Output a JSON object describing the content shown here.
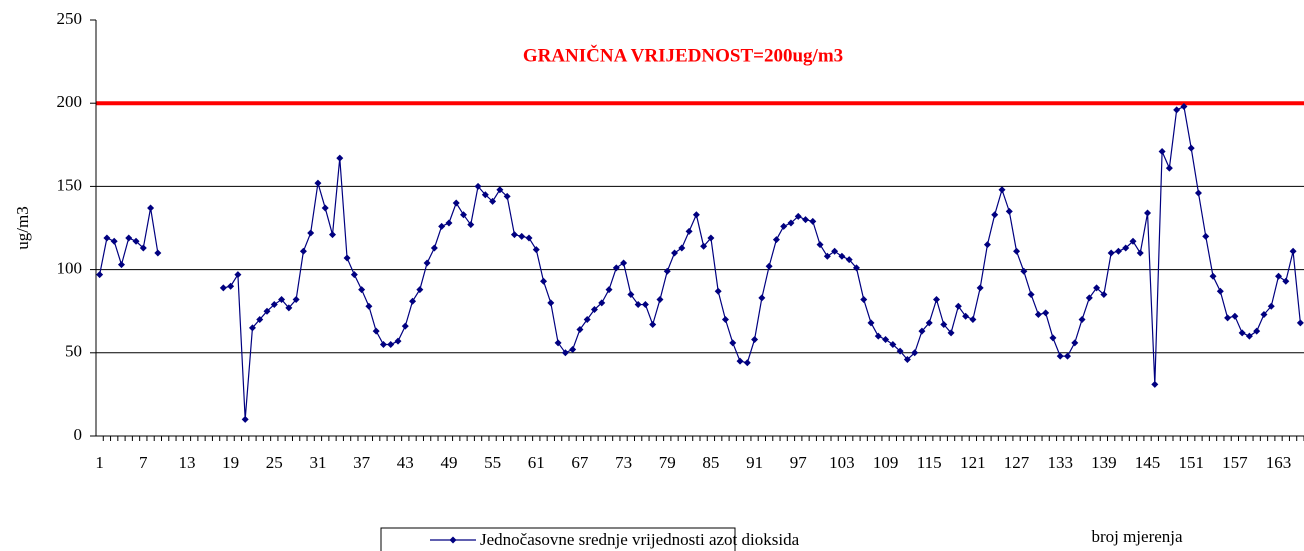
{
  "chart_data": {
    "type": "line",
    "annotation": "GRANIČNA VRIJEDNOST=200ug/m3",
    "limit_line": {
      "value": 200,
      "color": "#ff0000"
    },
    "y_label": "ug/m3",
    "x_label": "broj mjerenja",
    "categories": [
      "1",
      null,
      null,
      null,
      null,
      null,
      "7",
      null,
      null,
      null,
      null,
      null,
      "13",
      null,
      null,
      null,
      null,
      null,
      "19",
      null,
      null,
      null,
      null,
      null,
      "25",
      null,
      null,
      null,
      null,
      null,
      "31",
      null,
      null,
      null,
      null,
      null,
      "37",
      null,
      null,
      null,
      null,
      null,
      "43",
      null,
      null,
      null,
      null,
      null,
      "49",
      null,
      null,
      null,
      null,
      null,
      "55",
      null,
      null,
      null,
      null,
      null,
      "61",
      null,
      null,
      null,
      null,
      null,
      "67",
      null,
      null,
      null,
      null,
      null,
      "73",
      null,
      null,
      null,
      null,
      null,
      "79",
      null,
      null,
      null,
      null,
      null,
      "85",
      null,
      null,
      null,
      null,
      null,
      "91",
      null,
      null,
      null,
      null,
      null,
      "97",
      null,
      null,
      null,
      null,
      null,
      "103",
      null,
      null,
      null,
      null,
      null,
      "109",
      null,
      null,
      null,
      null,
      null,
      "115",
      null,
      null,
      null,
      null,
      null,
      "121",
      null,
      null,
      null,
      null,
      null,
      "127",
      null,
      null,
      null,
      null,
      null,
      "133",
      null,
      null,
      null,
      null,
      null,
      "139",
      null,
      null,
      null,
      null,
      null,
      "145",
      null,
      null,
      null,
      null,
      null,
      "151",
      null,
      null,
      null,
      null,
      null,
      "157",
      null,
      null,
      null,
      null,
      null,
      "163",
      null,
      null,
      null
    ],
    "series": [
      {
        "name": "Jednočasovne srednje vrijednosti azot dioksida",
        "color": "#000080",
        "values": [
          97,
          119,
          117,
          103,
          119,
          117,
          113,
          137,
          110,
          null,
          null,
          null,
          null,
          null,
          null,
          null,
          null,
          89,
          90,
          97,
          10,
          65,
          70,
          75,
          79,
          82,
          77,
          82,
          111,
          122,
          152,
          137,
          121,
          167,
          107,
          97,
          88,
          78,
          63,
          55,
          55,
          57,
          66,
          81,
          88,
          104,
          113,
          126,
          128,
          140,
          133,
          127,
          150,
          145,
          141,
          148,
          144,
          121,
          120,
          119,
          112,
          93,
          80,
          56,
          50,
          52,
          64,
          70,
          76,
          80,
          88,
          101,
          104,
          85,
          79,
          79,
          67,
          82,
          99,
          110,
          113,
          123,
          133,
          114,
          119,
          87,
          70,
          56,
          45,
          44,
          58,
          83,
          102,
          118,
          126,
          128,
          132,
          130,
          129,
          115,
          108,
          111,
          108,
          106,
          101,
          82,
          68,
          60,
          58,
          55,
          51,
          46,
          50,
          63,
          68,
          82,
          67,
          62,
          78,
          72,
          70,
          89,
          115,
          133,
          148,
          135,
          111,
          99,
          85,
          73,
          74,
          59,
          48,
          48,
          56,
          70,
          83,
          89,
          85,
          110,
          111,
          113,
          117,
          110,
          134,
          31,
          171,
          161,
          196,
          198,
          173,
          146,
          120,
          96,
          87,
          71,
          72,
          62,
          60,
          63,
          73,
          78,
          96,
          93,
          111,
          68
        ]
      }
    ],
    "ylim": [
      0,
      250
    ],
    "yticks": [
      0,
      50,
      100,
      150,
      200,
      250
    ],
    "grid": true
  }
}
